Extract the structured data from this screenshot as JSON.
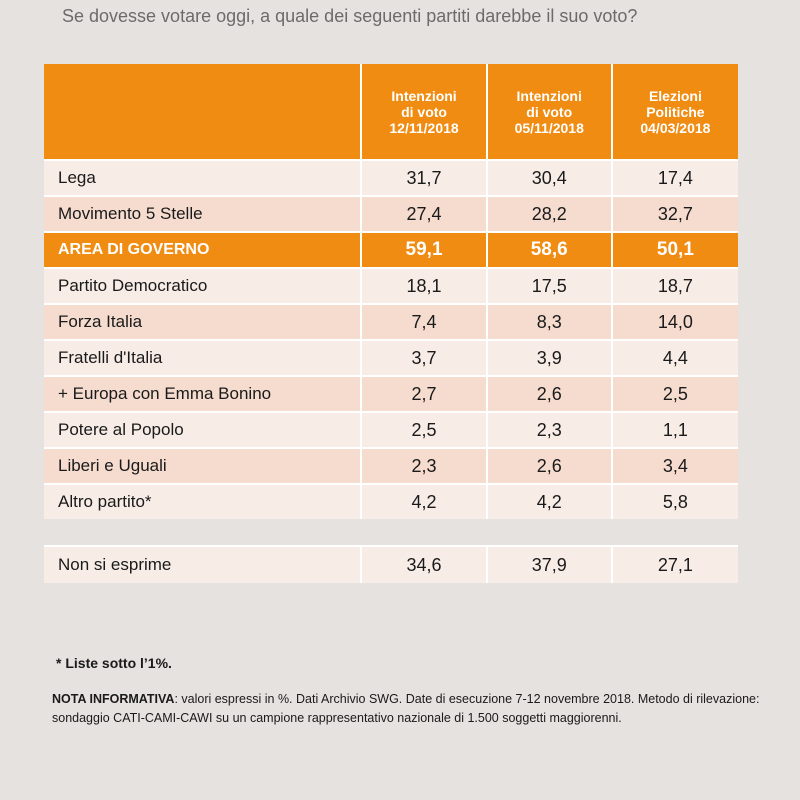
{
  "question": "Se dovesse votare oggi, a quale dei seguenti partiti darebbe il suo voto?",
  "columns": [
    {
      "lines": [
        "Intenzioni",
        "di voto",
        "12/11/2018"
      ]
    },
    {
      "lines": [
        "Intenzioni",
        "di voto",
        "05/11/2018"
      ]
    },
    {
      "lines": [
        "Elezioni",
        "Politiche",
        "04/03/2018"
      ]
    }
  ],
  "rows": [
    {
      "name": "Lega",
      "values": [
        "31,7",
        "30,4",
        "17,4"
      ]
    },
    {
      "name": "Movimento 5 Stelle",
      "values": [
        "27,4",
        "28,2",
        "32,7"
      ]
    },
    {
      "name": "AREA DI GOVERNO",
      "values": [
        "59,1",
        "58,6",
        "50,1"
      ]
    },
    {
      "name": "Partito Democratico",
      "values": [
        "18,1",
        "17,5",
        "18,7"
      ]
    },
    {
      "name": "Forza Italia",
      "values": [
        "7,4",
        "8,3",
        "14,0"
      ]
    },
    {
      "name": "Fratelli d'Italia",
      "values": [
        "3,7",
        "3,9",
        "4,4"
      ]
    },
    {
      "name": "+ Europa con Emma Bonino",
      "values": [
        "2,7",
        "2,6",
        "2,5"
      ]
    },
    {
      "name": "Potere al Popolo",
      "values": [
        "2,5",
        "2,3",
        "1,1"
      ]
    },
    {
      "name": "Liberi e Uguali",
      "values": [
        "2,3",
        "2,6",
        "3,4"
      ]
    },
    {
      "name": "Altro partito*",
      "values": [
        "4,2",
        "4,2",
        "5,8"
      ]
    }
  ],
  "non_si_esprime": {
    "name": "Non si esprime",
    "values": [
      "34,6",
      "37,9",
      "27,1"
    ]
  },
  "footnote": "* Liste sotto l’1%.",
  "nota": {
    "label": "NOTA INFORMATIVA",
    "text": ": valori espressi in %. Dati Archivio SWG. Date di esecuzione 7-12 novembre 2018. Metodo di rilevazione: sondaggio CATI-CAMI-CAWI su un campione rappresentativo nazionale di 1.500 soggetti maggiorenni."
  },
  "colors": {
    "accent": "#f18c12",
    "row_light": "#f7ece6",
    "row_dark": "#f5dccf",
    "background": "#e6e2df"
  }
}
